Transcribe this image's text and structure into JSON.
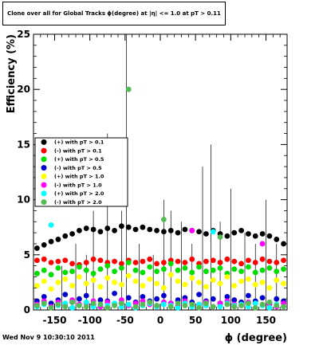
{
  "title": "Clone  over all for Global Tracks   ϕ(degree) at |η| <= 1.0 at pT > 0.11",
  "footer": "Wed Nov  9 10:30:10 2011",
  "chart_data": {
    "type": "scatter",
    "xlabel": "ϕ (degree)",
    "ylabel": "Efficiency (%)",
    "xlim": [
      -180,
      180
    ],
    "ylim": [
      0,
      25
    ],
    "xticks": [
      "-150",
      "-100",
      "-50",
      "0",
      "50",
      "100",
      "150"
    ],
    "yticks": [
      "0",
      "5",
      "10",
      "15",
      "20",
      "25"
    ],
    "grid": false,
    "legend_position": "left-middle",
    "series": [
      {
        "name": "(+) with pT > 0.1",
        "color": "#000000",
        "x": [
          -175,
          -165,
          -155,
          -145,
          -135,
          -125,
          -115,
          -105,
          -95,
          -85,
          -75,
          -65,
          -55,
          -45,
          -35,
          -25,
          -15,
          -5,
          5,
          15,
          25,
          35,
          45,
          55,
          65,
          75,
          85,
          95,
          105,
          115,
          125,
          135,
          145,
          155,
          165,
          175
        ],
        "y": [
          5.6,
          5.9,
          6.2,
          6.4,
          6.7,
          6.9,
          7.2,
          7.4,
          7.3,
          7.1,
          7.4,
          7.2,
          7.6,
          7.5,
          7.3,
          7.5,
          7.3,
          7.2,
          7.1,
          7.2,
          7.0,
          7.3,
          7.2,
          7.1,
          6.9,
          7.2,
          6.9,
          6.7,
          7.0,
          7.2,
          6.9,
          6.7,
          6.9,
          6.7,
          6.4,
          6.0
        ]
      },
      {
        "name": "(-) with pT > 0.1",
        "color": "#ff0000",
        "x": [
          -175,
          -165,
          -155,
          -145,
          -135,
          -125,
          -115,
          -105,
          -95,
          -85,
          -75,
          -65,
          -55,
          -45,
          -35,
          -25,
          -15,
          -5,
          5,
          15,
          25,
          35,
          45,
          55,
          65,
          75,
          85,
          95,
          105,
          115,
          125,
          135,
          145,
          155,
          165,
          175
        ],
        "y": [
          4.5,
          4.6,
          4.3,
          4.4,
          4.5,
          4.2,
          4.1,
          4.3,
          4.6,
          4.5,
          4.3,
          4.4,
          4.2,
          4.5,
          4.3,
          4.4,
          4.6,
          4.2,
          4.3,
          4.5,
          4.4,
          4.3,
          4.6,
          4.2,
          4.4,
          4.5,
          4.3,
          4.6,
          4.4,
          4.2,
          4.5,
          4.3,
          4.6,
          4.4,
          4.3,
          4.5
        ]
      },
      {
        "name": "(+) with pT > 0.5",
        "color": "#00dd00",
        "x": [
          -175,
          -165,
          -155,
          -145,
          -135,
          -125,
          -115,
          -105,
          -95,
          -85,
          -75,
          -65,
          -55,
          -45,
          -35,
          -25,
          -15,
          -5,
          5,
          15,
          25,
          35,
          45,
          55,
          65,
          75,
          85,
          95,
          105,
          115,
          125,
          135,
          145,
          155,
          165,
          175
        ],
        "y": [
          3.3,
          3.6,
          3.2,
          3.8,
          3.4,
          3.5,
          3.9,
          3.6,
          3.3,
          3.7,
          4.0,
          3.5,
          3.8,
          4.3,
          3.6,
          3.4,
          3.9,
          3.5,
          3.7,
          4.2,
          3.6,
          3.8,
          3.4,
          3.9,
          3.5,
          3.6,
          3.8,
          3.3,
          3.7,
          3.5,
          3.9,
          3.4,
          3.6,
          3.8,
          3.5,
          3.7
        ]
      },
      {
        "name": "(-) with pT > 0.5",
        "color": "#0000cc",
        "x": [
          -175,
          -165,
          -155,
          -145,
          -135,
          -125,
          -115,
          -105,
          -95,
          -85,
          -75,
          -65,
          -55,
          -45,
          -35,
          -25,
          -15,
          -5,
          5,
          15,
          25,
          35,
          45,
          55,
          65,
          75,
          85,
          95,
          105,
          115,
          125,
          135,
          145,
          155,
          165,
          175
        ],
        "y": [
          0.8,
          1.2,
          0.6,
          0.9,
          1.4,
          0.7,
          1.0,
          1.3,
          0.5,
          0.9,
          0.8,
          1.5,
          0.6,
          1.1,
          0.7,
          1.2,
          0.8,
          1.0,
          1.3,
          0.6,
          0.9,
          1.1,
          0.7,
          1.4,
          0.8,
          1.0,
          0.6,
          1.2,
          0.9,
          0.7,
          1.3,
          0.8,
          1.1,
          0.6,
          1.0,
          0.8
        ]
      },
      {
        "name": "(+) with pT > 1.0",
        "color": "#ffff00",
        "x": [
          -175,
          -165,
          -155,
          -145,
          -135,
          -125,
          -115,
          -105,
          -95,
          -85,
          -75,
          -65,
          -55,
          -45,
          -35,
          -25,
          -15,
          -5,
          5,
          15,
          25,
          35,
          45,
          55,
          65,
          75,
          85,
          95,
          105,
          115,
          125,
          135,
          145,
          155,
          165,
          175
        ],
        "y": [
          2.2,
          2.6,
          1.9,
          2.5,
          2.8,
          2.2,
          3.0,
          2.4,
          2.7,
          2.1,
          2.9,
          2.5,
          2.3,
          3.1,
          2.6,
          2.2,
          2.8,
          2.4,
          2.0,
          3.2,
          2.6,
          2.3,
          2.9,
          2.5,
          2.1,
          2.7,
          2.4,
          3.0,
          2.2,
          2.6,
          2.8,
          2.3,
          2.5,
          2.0,
          2.7,
          2.4
        ]
      },
      {
        "name": "(-) with pT > 1.0",
        "color": "#ff00ff",
        "x": [
          -175,
          -165,
          -155,
          -145,
          -135,
          -125,
          -115,
          -105,
          -95,
          -85,
          -75,
          -65,
          -55,
          -45,
          -35,
          -25,
          -15,
          -5,
          5,
          15,
          25,
          35,
          45,
          55,
          65,
          75,
          85,
          95,
          105,
          115,
          125,
          135,
          145,
          155,
          165,
          175
        ],
        "y": [
          0.5,
          0.8,
          0.3,
          0.7,
          0.4,
          0.9,
          0.5,
          0.6,
          0.8,
          0.3,
          0.7,
          0.5,
          0.9,
          0.4,
          0.6,
          0.8,
          0.5,
          0.3,
          0.7,
          0.6,
          0.4,
          0.8,
          7.2,
          0.5,
          0.7,
          0.3,
          0.6,
          0.8,
          0.5,
          0.4,
          0.7,
          0.6,
          6.0,
          0.5,
          0.3,
          0.6
        ]
      },
      {
        "name": "(+) with pT > 2.0",
        "color": "#00ffff",
        "x": [
          -175,
          -165,
          -155,
          -145,
          -135,
          -125,
          -115,
          -105,
          -95,
          -85,
          -75,
          -65,
          -55,
          -45,
          -35,
          -25,
          -15,
          -5,
          5,
          15,
          25,
          35,
          45,
          55,
          65,
          75,
          85,
          95,
          105,
          115,
          125,
          135,
          145,
          155,
          165,
          175
        ],
        "y": [
          0.3,
          0.5,
          7.7,
          0.4,
          0.6,
          0.2,
          0.4,
          0.7,
          0.3,
          0.5,
          0.4,
          0.6,
          0.3,
          0.5,
          0.2,
          0.4,
          0.6,
          0.3,
          0.5,
          0.4,
          0.2,
          0.6,
          0.3,
          0.5,
          0.4,
          7.1,
          0.3,
          0.6,
          0.4,
          0.5,
          0.3,
          0.6,
          0.4,
          0.2,
          0.5,
          0.3
        ]
      },
      {
        "name": "(-) with pT > 2.0",
        "color": "#55bb55",
        "x": [
          -175,
          -165,
          -155,
          -145,
          -135,
          -125,
          -115,
          -105,
          -95,
          -85,
          -75,
          -65,
          -55,
          -45,
          -35,
          -25,
          -15,
          -5,
          5,
          15,
          25,
          35,
          45,
          55,
          65,
          75,
          85,
          95,
          105,
          115,
          125,
          135,
          145,
          155,
          165,
          175
        ],
        "y": [
          0.4,
          0.6,
          0.2,
          0.5,
          0.3,
          0.7,
          0.4,
          0.3,
          0.6,
          0.5,
          0.2,
          0.4,
          0.6,
          20.0,
          0.3,
          0.5,
          0.7,
          0.4,
          8.2,
          0.3,
          0.6,
          0.4,
          0.5,
          0.2,
          0.6,
          0.3,
          6.6,
          0.5,
          0.3,
          0.4,
          0.6,
          0.2,
          0.5,
          0.7,
          0.4,
          0.3
        ]
      }
    ]
  }
}
